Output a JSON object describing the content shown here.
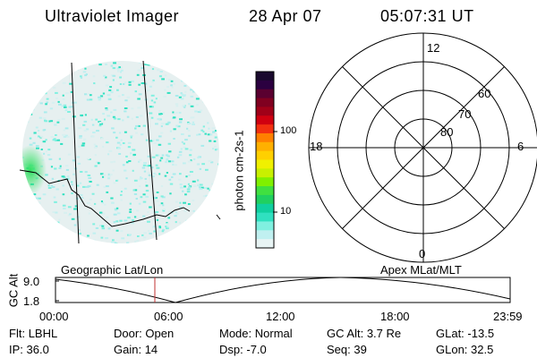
{
  "header": {
    "title": "Ultraviolet Imager",
    "date": "28 Apr 07",
    "time": "05:07:31 UT"
  },
  "colorbar": {
    "unit_label": "photon cm-2s-1",
    "tick_labels": [
      "100",
      "10"
    ],
    "colors": [
      "#1a0a2e",
      "#2b0040",
      "#5a0030",
      "#800020",
      "#a00018",
      "#d00010",
      "#f23010",
      "#ff8000",
      "#ffb000",
      "#ffd000",
      "#f0f000",
      "#c8f000",
      "#80f000",
      "#40e040",
      "#20d060",
      "#10d0a0",
      "#30e0c0",
      "#80f0e0",
      "#c0f0f0",
      "#e8f4f4"
    ]
  },
  "polar_grid": {
    "mlt_labels": {
      "top": "12",
      "right": "6",
      "bottom": "0",
      "left": "18"
    },
    "lat_labels": [
      "60",
      "70",
      "80"
    ]
  },
  "timeline": {
    "title_left": "Geographic Lat/Lon",
    "title_right": "Apex MLat/MLT",
    "axis_label": "GC Alt",
    "y_ticks": [
      "9.0",
      "1.8"
    ],
    "x_ticks": [
      "00:00",
      "06:00",
      "12:00",
      "18:00",
      "23:59"
    ]
  },
  "status": [
    {
      "label": "Flt:",
      "value": "LBHL"
    },
    {
      "label": "Door:",
      "value": "Open"
    },
    {
      "label": "Mode:",
      "value": "Normal"
    },
    {
      "label": "GC Alt:",
      "value": "3.7 Re"
    },
    {
      "label": "GLat:",
      "value": "-13.5"
    },
    {
      "label": "IP:",
      "value": "36.0"
    },
    {
      "label": "Gain:",
      "value": "14"
    },
    {
      "label": "Dsp:",
      "value": "-7.0"
    },
    {
      "label": "Seq:",
      "value": "39"
    },
    {
      "label": "GLon:",
      "value": "32.5"
    }
  ]
}
